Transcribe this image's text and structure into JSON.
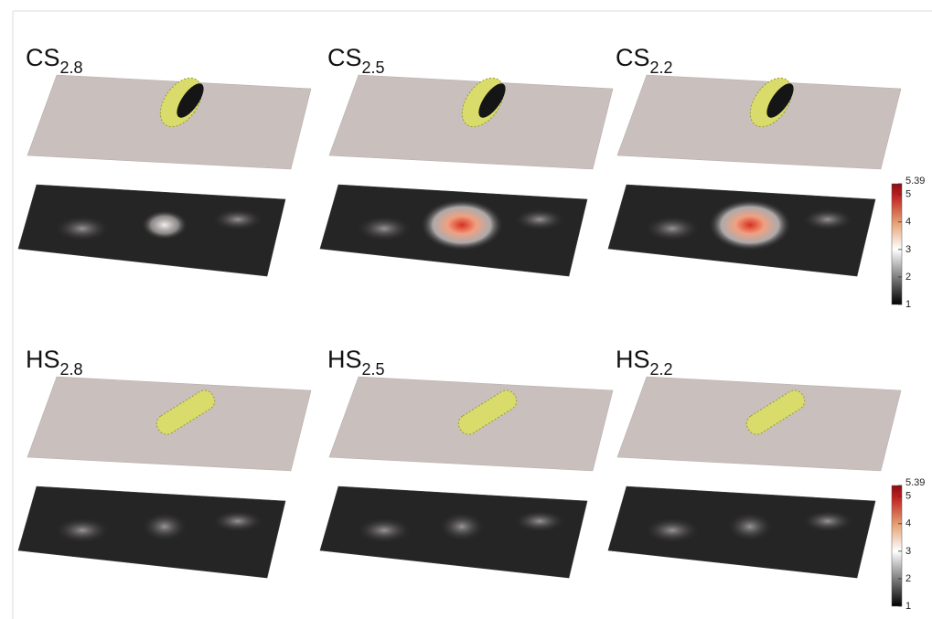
{
  "panels": [
    {
      "label": "CS",
      "subscript": "2.8"
    },
    {
      "label": "CS",
      "subscript": "2.5"
    },
    {
      "label": "CS",
      "subscript": "2.2"
    },
    {
      "label": "HS",
      "subscript": "2.8"
    },
    {
      "label": "HS",
      "subscript": "2.5"
    },
    {
      "label": "HS",
      "subscript": "2.2"
    }
  ],
  "colorbars": [
    {
      "range": [
        1,
        5.39
      ],
      "ticks": [
        1,
        2,
        3,
        4,
        5,
        5.39
      ]
    },
    {
      "range": [
        1,
        5.39
      ],
      "ticks": [
        1,
        2,
        3,
        4,
        5,
        5.39
      ]
    }
  ]
}
